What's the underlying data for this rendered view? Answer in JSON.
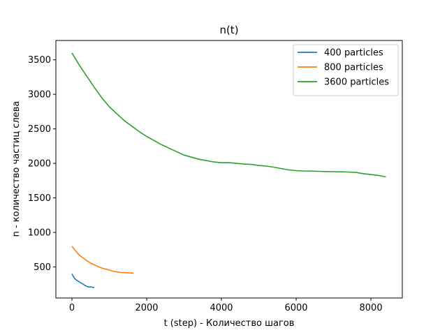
{
  "chart_data": {
    "type": "line",
    "title": "n(t)",
    "xlabel": "t (step) - Количество шагов",
    "ylabel": "n - количество частиц слева",
    "xlim": [
      -430,
      8840
    ],
    "ylim": [
      50,
      3780
    ],
    "xticks": [
      0,
      2000,
      4000,
      6000,
      8000
    ],
    "yticks": [
      500,
      1000,
      1500,
      2000,
      2500,
      3000,
      3500
    ],
    "grid": false,
    "legend_position": "top-right",
    "series": [
      {
        "name": "400 particles",
        "color": "#1f77b4",
        "x": [
          0,
          20,
          60,
          100,
          150,
          200,
          250,
          300,
          350,
          400,
          450,
          500,
          550,
          600
        ],
        "y": [
          400,
          380,
          340,
          318,
          300,
          282,
          265,
          250,
          232,
          218,
          210,
          212,
          205,
          203
        ]
      },
      {
        "name": "800 particles",
        "color": "#ff7f0e",
        "x": [
          0,
          50,
          100,
          150,
          200,
          250,
          300,
          400,
          500,
          600,
          700,
          800,
          900,
          1000,
          1100,
          1200,
          1300,
          1400,
          1500,
          1600,
          1650
        ],
        "y": [
          800,
          765,
          730,
          700,
          670,
          650,
          630,
          590,
          555,
          530,
          505,
          485,
          468,
          455,
          438,
          428,
          420,
          418,
          415,
          412,
          408
        ]
      },
      {
        "name": "3600 particles",
        "color": "#2ca02c",
        "x": [
          0,
          200,
          400,
          600,
          800,
          1000,
          1200,
          1400,
          1600,
          1800,
          2000,
          2200,
          2400,
          2600,
          2800,
          3000,
          3200,
          3400,
          3600,
          3800,
          4000,
          4200,
          4400,
          4600,
          4800,
          5000,
          5200,
          5400,
          5600,
          5800,
          6000,
          6200,
          6400,
          6600,
          6800,
          7000,
          7200,
          7400,
          7600,
          7800,
          8000,
          8200,
          8400
        ],
        "y": [
          3600,
          3420,
          3260,
          3100,
          2950,
          2820,
          2720,
          2620,
          2540,
          2460,
          2390,
          2330,
          2270,
          2220,
          2170,
          2120,
          2090,
          2060,
          2040,
          2020,
          2010,
          2010,
          2000,
          1990,
          1985,
          1970,
          1960,
          1945,
          1925,
          1905,
          1895,
          1890,
          1888,
          1885,
          1882,
          1880,
          1878,
          1875,
          1868,
          1850,
          1838,
          1825,
          1805
        ]
      }
    ]
  }
}
